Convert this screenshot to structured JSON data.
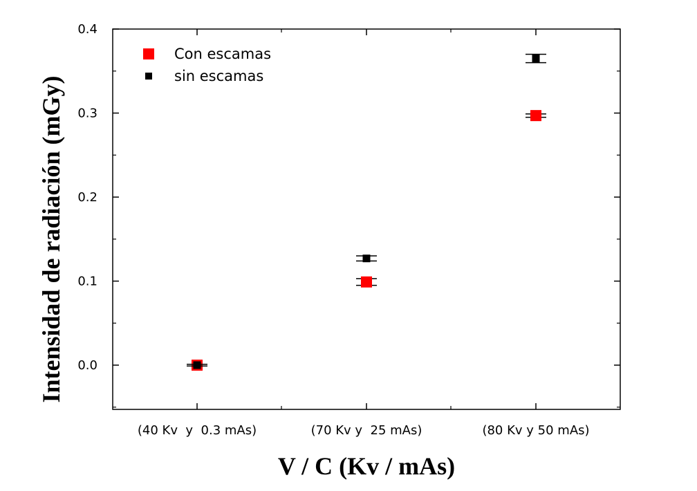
{
  "chart_data": {
    "type": "scatter",
    "title": "",
    "xlabel": "V / C (Kv / mAs)",
    "ylabel": "Intensidad de radiación (mGy)",
    "categories": [
      "(40 Kv  y  0.3 mAs)",
      "(70 Kv y  25 mAs)",
      "(80 Kv y 50 mAs)"
    ],
    "ylim": [
      -0.05,
      0.4
    ],
    "yticks": [
      "0.0",
      "0.1",
      "0.2",
      "0.3",
      "0.4"
    ],
    "legend_position": "top-left",
    "grid": false,
    "series": [
      {
        "name": "Con escamas",
        "color": "#ff0000",
        "values": [
          0.0,
          0.099,
          0.297
        ],
        "errors": [
          0.001,
          0.004,
          0.002
        ]
      },
      {
        "name": "sin escamas",
        "color": "#000000",
        "values": [
          0.0,
          0.127,
          0.365
        ],
        "errors": [
          0.001,
          0.003,
          0.005
        ]
      }
    ]
  }
}
